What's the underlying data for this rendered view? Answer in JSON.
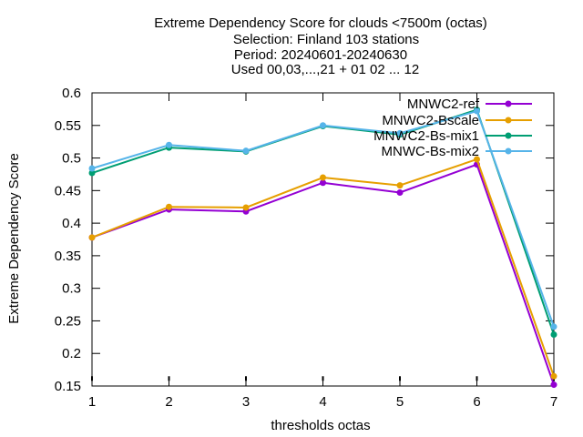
{
  "chart_data": {
    "type": "line",
    "title_lines": [
      "Extreme Dependency Score  for clouds <7500m (octas)",
      "Selection: Finland    103 stations",
      "Period: 20240601-20240630",
      "Used 00,03,...,21 + 01 02 ... 12"
    ],
    "xlabel": "thresholds octas",
    "ylabel": "Extreme Dependency Score",
    "x": [
      1,
      2,
      3,
      4,
      5,
      6,
      7
    ],
    "xlim": [
      1,
      7
    ],
    "ylim": [
      0.15,
      0.6
    ],
    "x_ticks": [
      "1",
      "2",
      "3",
      "4",
      "5",
      "6",
      "7"
    ],
    "y_ticks": [
      "0.15",
      "0.2",
      "0.25",
      "0.3",
      "0.35",
      "0.4",
      "0.45",
      "0.5",
      "0.55",
      "0.6"
    ],
    "grid": false,
    "legend_position": "top-right",
    "series": [
      {
        "name": "MNWC2-ref",
        "color": "#9400d3",
        "values": [
          0.378,
          0.421,
          0.418,
          0.462,
          0.447,
          0.49,
          0.152
        ]
      },
      {
        "name": "MNWC2-Bscale",
        "color": "#e69f00",
        "values": [
          0.378,
          0.425,
          0.424,
          0.47,
          0.458,
          0.498,
          0.165
        ]
      },
      {
        "name": "MNWC2-Bs-mix1",
        "color": "#009e73",
        "values": [
          0.477,
          0.516,
          0.51,
          0.549,
          0.536,
          0.574,
          0.229
        ]
      },
      {
        "name": "MNWC-Bs-mix2",
        "color": "#56b4e9",
        "values": [
          0.484,
          0.52,
          0.511,
          0.55,
          0.538,
          0.572,
          0.241
        ]
      }
    ]
  }
}
